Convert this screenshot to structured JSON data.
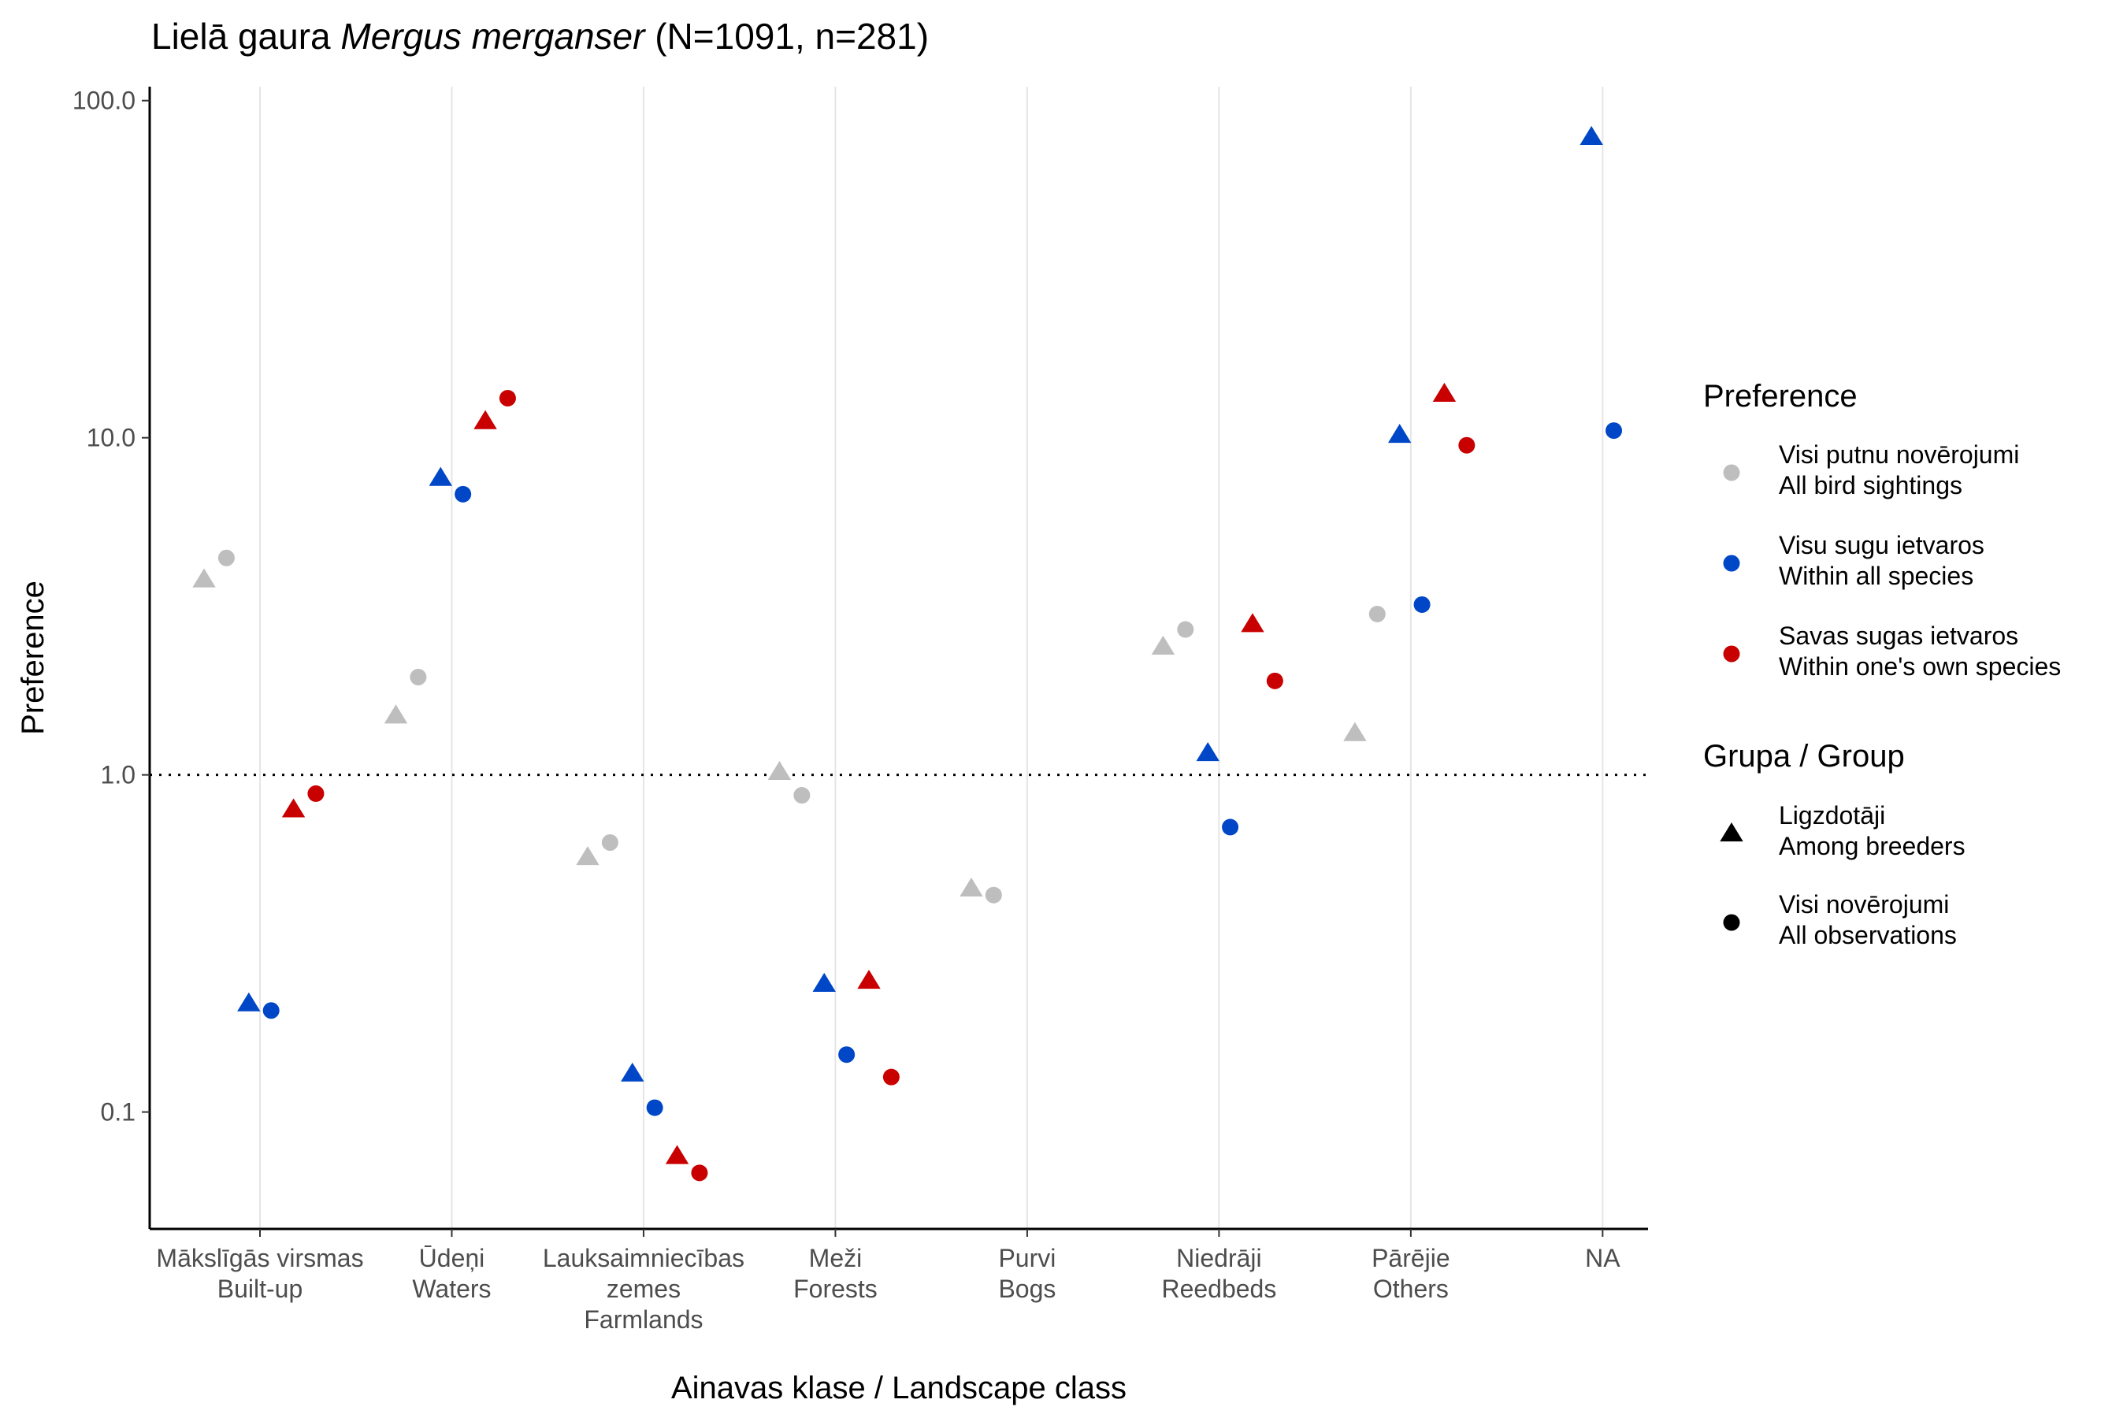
{
  "chart_data": {
    "type": "scatter",
    "title": {
      "prefix": "Lielā gaura ",
      "species": "Mergus merganser",
      "suffix": " (N=1091, n=281)"
    },
    "xlabel": "Ainavas klase / Landscape class",
    "ylabel": "Preference",
    "yscale": "log10",
    "ylim": [
      0.045,
      110
    ],
    "yticks": [
      {
        "value": 0.1,
        "label": "0.1"
      },
      {
        "value": 1,
        "label": "1.0"
      },
      {
        "value": 10,
        "label": "10.0"
      },
      {
        "value": 100,
        "label": "100.0"
      }
    ],
    "reference_line": 1,
    "categories": [
      {
        "lines": [
          "Mākslīgās virsmas",
          "Built-up"
        ]
      },
      {
        "lines": [
          "Ūdeņi",
          "Waters"
        ]
      },
      {
        "lines": [
          "Lauksaimniecības",
          "zemes",
          "Farmlands"
        ]
      },
      {
        "lines": [
          "Meži",
          "Forests"
        ]
      },
      {
        "lines": [
          "Purvi",
          "Bogs"
        ]
      },
      {
        "lines": [
          "Niedrāji",
          "Reedbeds"
        ]
      },
      {
        "lines": [
          "Pārējie",
          "Others"
        ]
      },
      {
        "lines": [
          "NA"
        ]
      }
    ],
    "preference_legend": {
      "title": "Preference",
      "items": [
        {
          "key": "all_sightings",
          "color": "#bebebe",
          "lines": [
            "Visi putnu novērojumi",
            "All bird sightings"
          ]
        },
        {
          "key": "all_species",
          "color": "#0047c8",
          "lines": [
            "Visu sugu ietvaros",
            "Within all species"
          ]
        },
        {
          "key": "own_species",
          "color": "#c80000",
          "lines": [
            "Savas sugas ietvaros",
            "Within one's own species"
          ]
        }
      ]
    },
    "group_legend": {
      "title": "Grupa / Group",
      "items": [
        {
          "key": "breeders",
          "shape": "triangle",
          "lines": [
            "Ligzdotāji",
            "Among breeders"
          ]
        },
        {
          "key": "all_obs",
          "shape": "circle",
          "lines": [
            "Visi novērojumi",
            "All observations"
          ]
        }
      ]
    },
    "series": [
      {
        "preference": "all_sightings",
        "group": "breeders",
        "offset": -0.3,
        "values": [
          3.8,
          1.5,
          0.57,
          1.02,
          0.46,
          2.4,
          1.33,
          null
        ]
      },
      {
        "preference": "all_sightings",
        "group": "all_obs",
        "offset": -0.18,
        "values": [
          4.4,
          1.95,
          0.63,
          0.87,
          0.44,
          2.7,
          3.0,
          null
        ]
      },
      {
        "preference": "all_species",
        "group": "breeders",
        "offset": -0.06,
        "values": [
          0.21,
          7.6,
          0.13,
          0.24,
          null,
          1.16,
          10.2,
          78
        ]
      },
      {
        "preference": "all_species",
        "group": "all_obs",
        "offset": 0.06,
        "values": [
          0.2,
          6.8,
          0.103,
          0.148,
          null,
          0.7,
          3.2,
          10.5
        ]
      },
      {
        "preference": "own_species",
        "group": "breeders",
        "offset": 0.18,
        "values": [
          0.79,
          11.2,
          0.074,
          0.245,
          null,
          2.8,
          13.5,
          null
        ]
      },
      {
        "preference": "own_species",
        "group": "all_obs",
        "offset": 0.3,
        "values": [
          0.88,
          13.1,
          0.066,
          0.127,
          null,
          1.9,
          9.5,
          null
        ]
      }
    ]
  }
}
